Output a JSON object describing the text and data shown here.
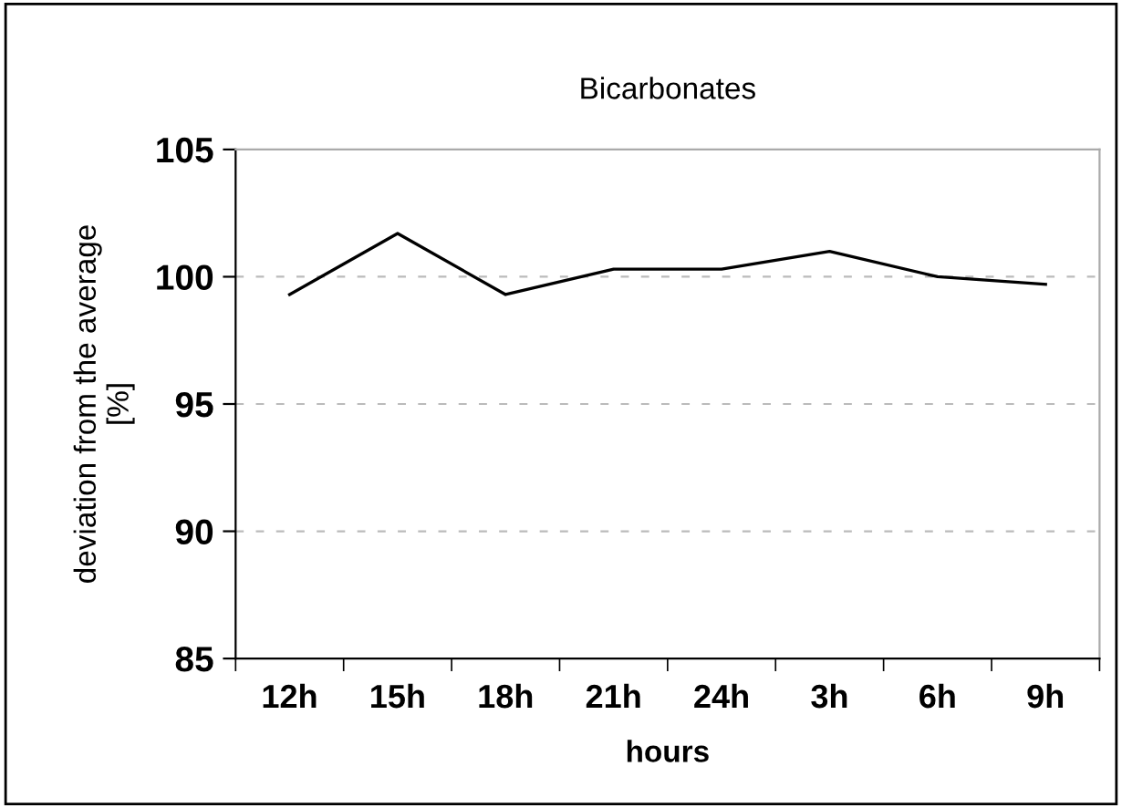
{
  "chart_data": {
    "type": "line",
    "title": "Bicarbonates",
    "xlabel": "hours",
    "ylabel": "deviation from the average\n[%]",
    "categories": [
      "12h",
      "15h",
      "18h",
      "21h",
      "24h",
      "3h",
      "6h",
      "9h"
    ],
    "series": [
      {
        "color": "#000000",
        "values": [
          99.3,
          101.7,
          99.3,
          100.3,
          100.3,
          101.0,
          100.0,
          99.7
        ]
      }
    ],
    "ylim": [
      85,
      105
    ],
    "yticks": [
      85,
      90,
      95,
      100,
      105
    ],
    "grid": "y",
    "marker": "none",
    "line_style": "solid"
  }
}
